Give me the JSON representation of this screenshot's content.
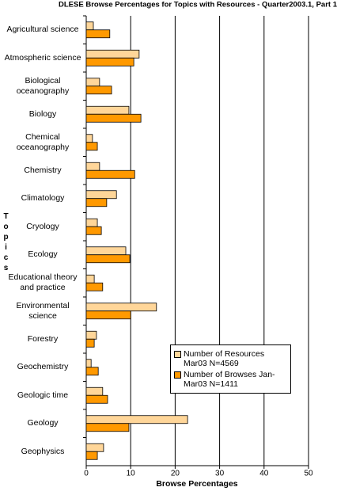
{
  "chart_data": {
    "type": "hbar",
    "title": "DLESE Browse Percentages for Topics with Resources - Quarter2003.1, Part 1",
    "x_label": "Browse Percentages",
    "y_label": "Topics",
    "categories": [
      "Agricultural science",
      "Atmospheric science",
      "Biological oceanography",
      "Biology",
      "Chemical oceanography",
      "Chemistry",
      "Climatology",
      "Cryology",
      "Ecology",
      "Educational theory and practice",
      "Environmental science",
      "Forestry",
      "Geochemistry",
      "Geologic time",
      "Geology",
      "Geophysics"
    ],
    "series": [
      {
        "name": "Number of Resources Mar03 N=4569",
        "color": "#ffd699",
        "values": [
          1.6,
          11.9,
          3.0,
          9.6,
          1.4,
          3.0,
          6.8,
          2.5,
          8.9,
          1.8,
          15.8,
          2.3,
          1.1,
          3.7,
          22.8,
          3.9
        ]
      },
      {
        "name": "Number of Browses Jan-Mar03 N=1411",
        "color": "#ff9900",
        "values": [
          5.3,
          10.7,
          5.7,
          12.3,
          2.5,
          10.9,
          4.6,
          3.4,
          9.8,
          3.7,
          10.0,
          1.8,
          2.7,
          4.8,
          9.6,
          2.5
        ]
      }
    ],
    "xlim": [
      0,
      50
    ],
    "xticks": [
      0,
      10,
      20,
      30,
      40,
      50
    ],
    "grid": true,
    "legend": "center right"
  }
}
